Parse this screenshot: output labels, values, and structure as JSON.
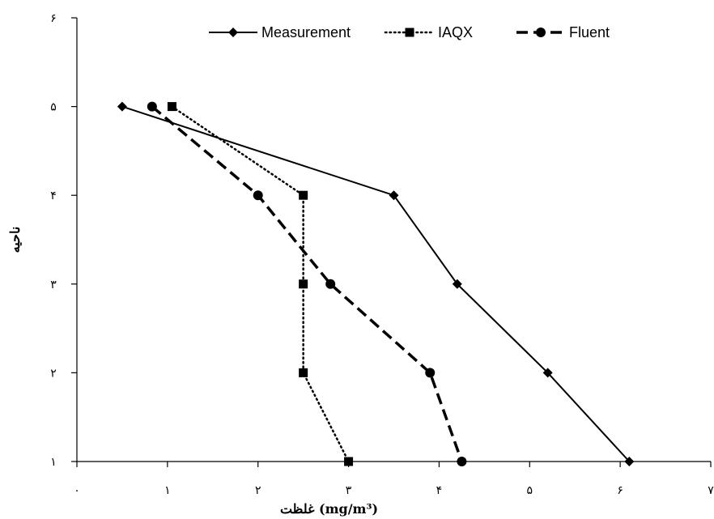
{
  "chart_data": {
    "type": "line",
    "title": "",
    "xlabel": "غلظت (mg/m³)",
    "ylabel": "ناحیه",
    "xlim": [
      0,
      7
    ],
    "ylim": [
      1,
      6
    ],
    "x_ticks": [
      {
        "value": 0,
        "label": "۰"
      },
      {
        "value": 1,
        "label": "۱"
      },
      {
        "value": 2,
        "label": "۲"
      },
      {
        "value": 3,
        "label": "۳"
      },
      {
        "value": 4,
        "label": "۴"
      },
      {
        "value": 5,
        "label": "۵"
      },
      {
        "value": 6,
        "label": "۶"
      },
      {
        "value": 7,
        "label": "۷"
      }
    ],
    "y_ticks": [
      {
        "value": 1,
        "label": "۱"
      },
      {
        "value": 2,
        "label": "۲"
      },
      {
        "value": 3,
        "label": "۳"
      },
      {
        "value": 4,
        "label": "۴"
      },
      {
        "value": 5,
        "label": "۵"
      },
      {
        "value": 6,
        "label": "۶"
      }
    ],
    "grid": false,
    "legend_position": "top",
    "series": [
      {
        "name": "Measurement",
        "marker": "diamond",
        "line_style": "solid",
        "color": "#000000",
        "points": [
          {
            "x": 0.5,
            "y": 5
          },
          {
            "x": 3.5,
            "y": 4
          },
          {
            "x": 4.2,
            "y": 3
          },
          {
            "x": 5.2,
            "y": 2
          },
          {
            "x": 6.1,
            "y": 1
          }
        ]
      },
      {
        "name": "IAQX",
        "marker": "square",
        "line_style": "dotted",
        "color": "#000000",
        "points": [
          {
            "x": 1.05,
            "y": 5
          },
          {
            "x": 2.5,
            "y": 4
          },
          {
            "x": 2.5,
            "y": 3
          },
          {
            "x": 2.5,
            "y": 2
          },
          {
            "x": 3.0,
            "y": 1
          }
        ]
      },
      {
        "name": "Fluent",
        "marker": "circle",
        "line_style": "dashed",
        "color": "#000000",
        "points": [
          {
            "x": 0.83,
            "y": 5
          },
          {
            "x": 2.0,
            "y": 4
          },
          {
            "x": 2.8,
            "y": 3
          },
          {
            "x": 3.9,
            "y": 2
          },
          {
            "x": 4.25,
            "y": 1
          }
        ]
      }
    ]
  }
}
